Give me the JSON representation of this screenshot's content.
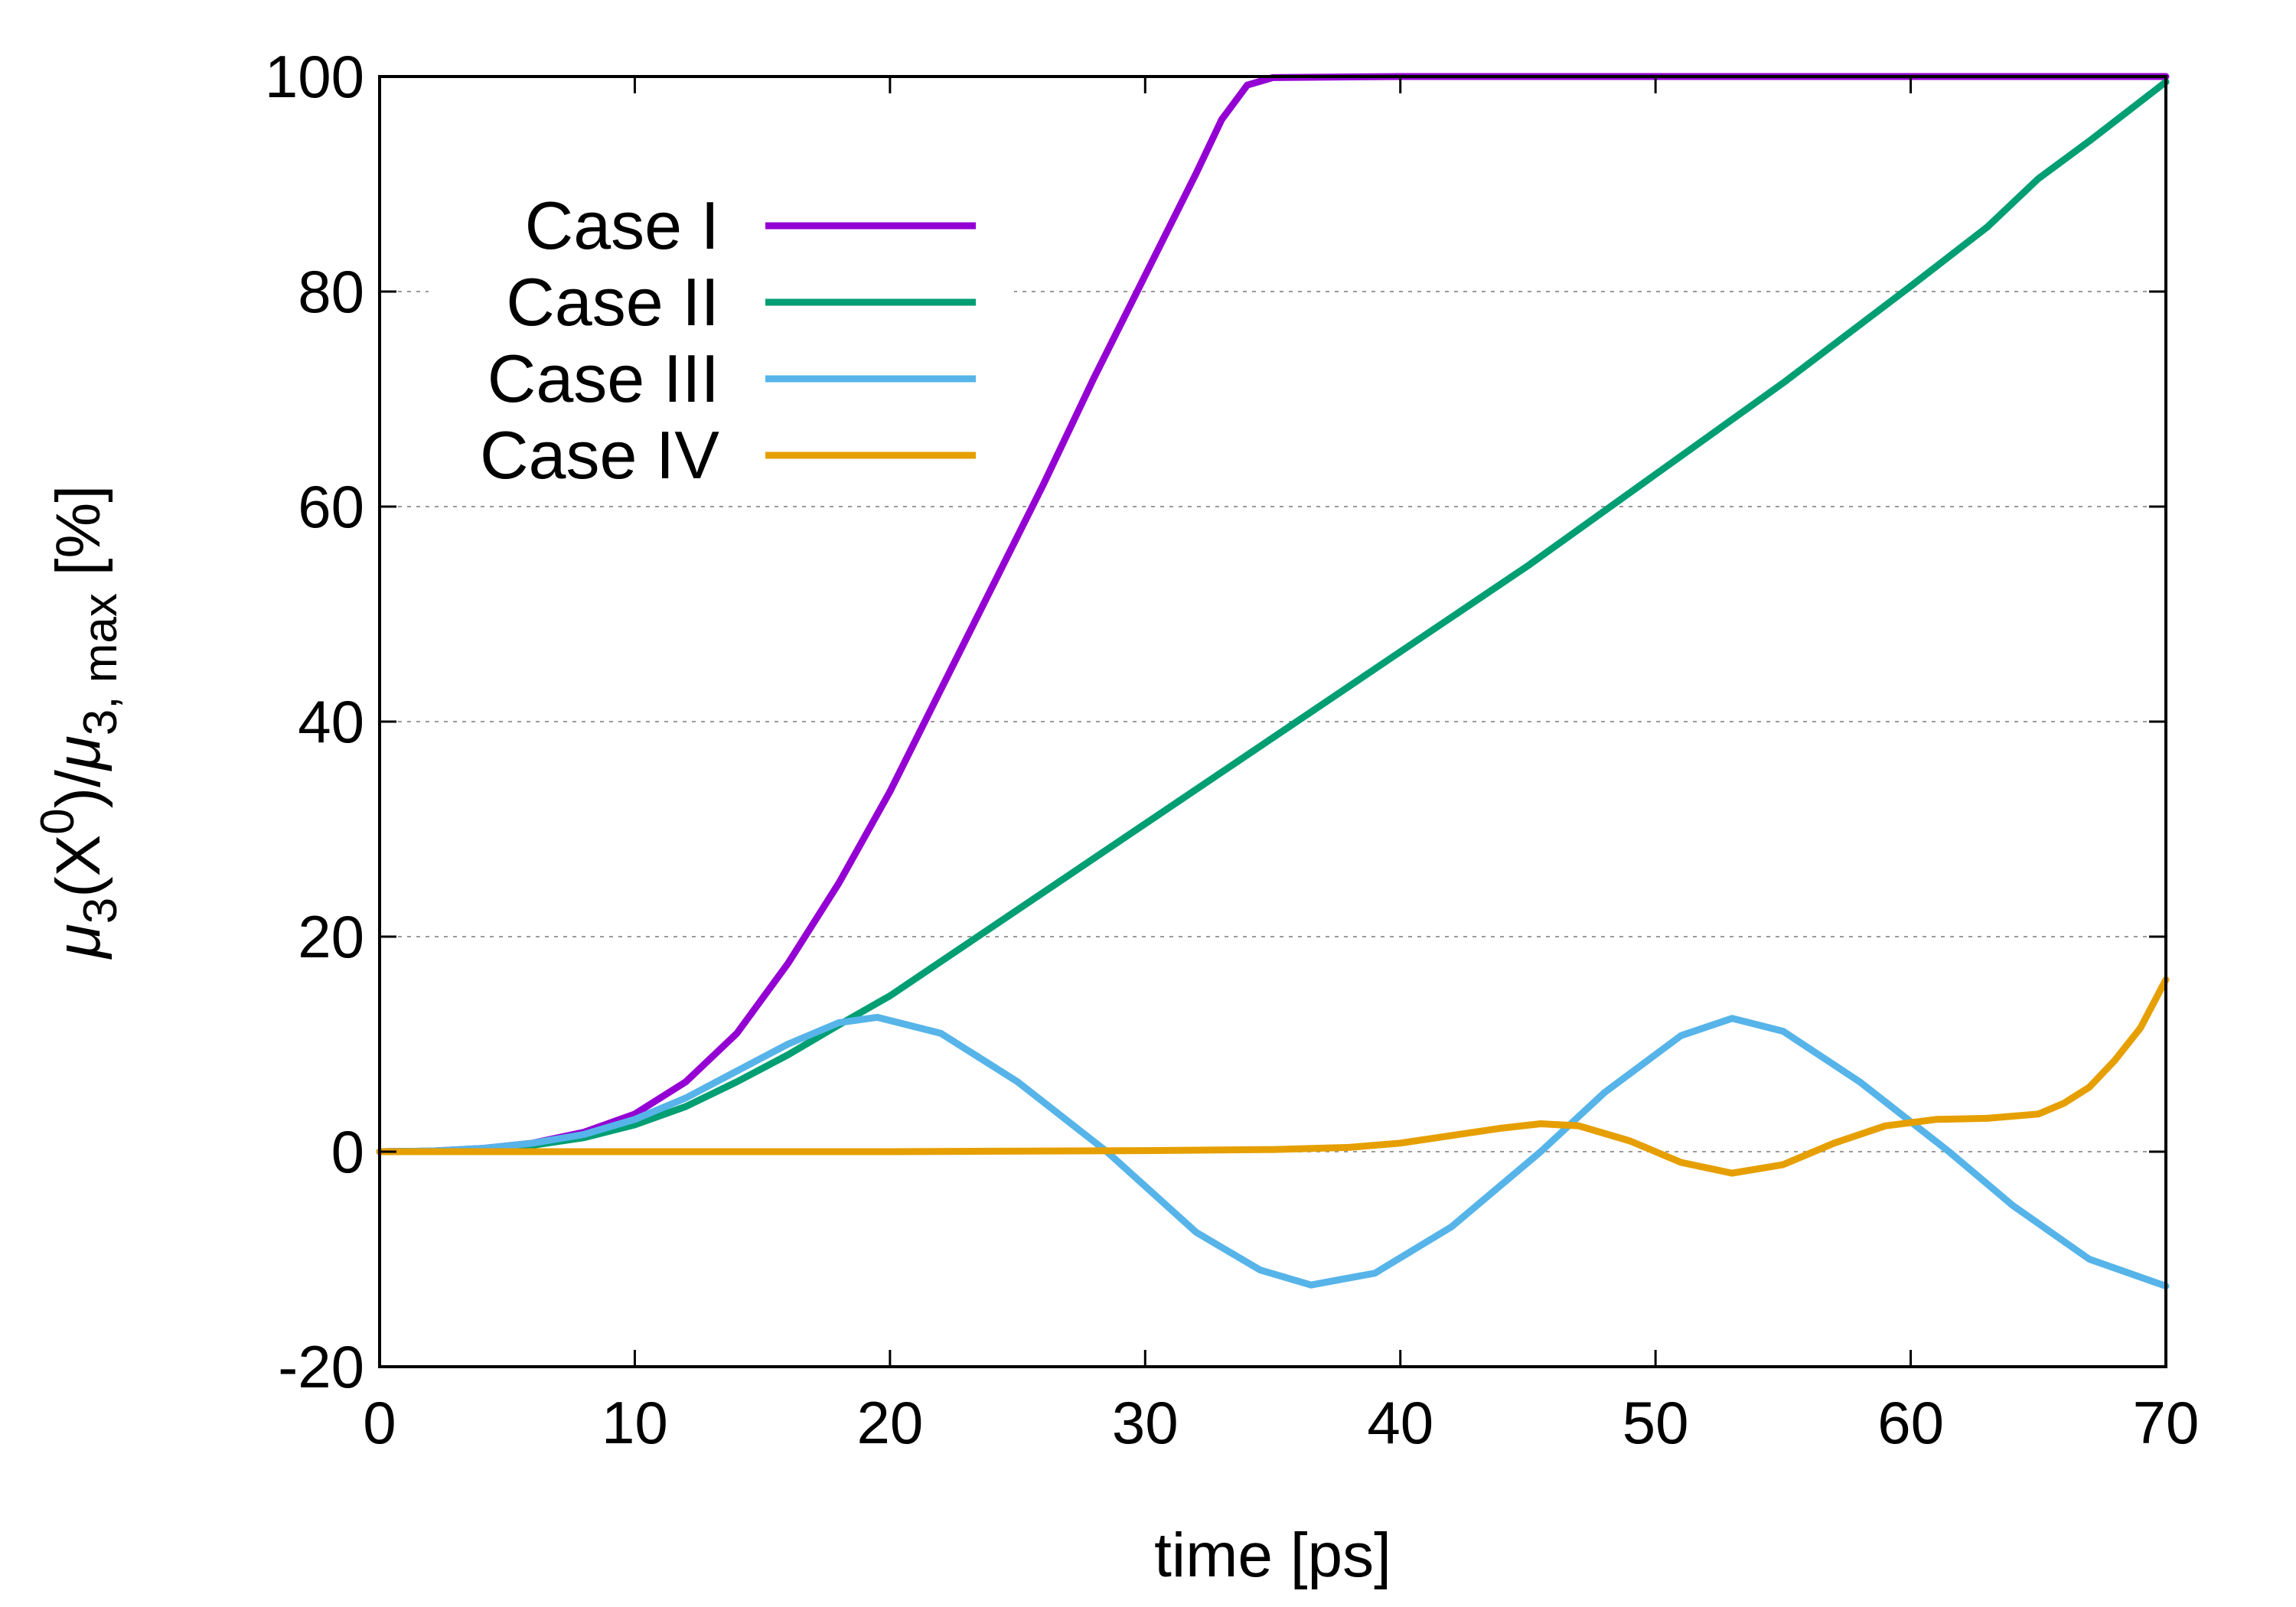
{
  "chart_data": {
    "type": "line",
    "xlabel": "time [ps]",
    "ylabel": "μ3(X0)/μ3, max [%]",
    "xlim": [
      0,
      70
    ],
    "ylim": [
      -20,
      100
    ],
    "xticks": [
      0,
      10,
      20,
      30,
      40,
      50,
      60,
      70
    ],
    "yticks": [
      -20,
      0,
      20,
      40,
      60,
      80,
      100
    ],
    "grid": "horizontal dashed",
    "legend_position": "top-left",
    "series": [
      {
        "name": "Case I",
        "color": "#9400d3",
        "x": [
          0,
          2,
          4,
          6,
          8,
          10,
          12,
          14,
          16,
          18,
          20,
          22,
          24,
          26,
          28,
          30,
          32,
          33,
          34,
          35,
          40,
          50,
          60,
          70
        ],
        "y": [
          0,
          0.05,
          0.3,
          0.8,
          1.8,
          3.5,
          6.5,
          11,
          17.5,
          25,
          33.5,
          43,
          52.5,
          62,
          72,
          81.5,
          91,
          96,
          99.2,
          99.9,
          100,
          100,
          100,
          100
        ]
      },
      {
        "name": "Case II",
        "color": "#009e73",
        "x": [
          0,
          2,
          4,
          6,
          8,
          10,
          12,
          14,
          16,
          18,
          20,
          25,
          30,
          35,
          40,
          45,
          50,
          55,
          60,
          63,
          65,
          67,
          70
        ],
        "y": [
          0,
          0.05,
          0.2,
          0.6,
          1.3,
          2.5,
          4.2,
          6.5,
          9,
          11.8,
          14.5,
          22.5,
          30.5,
          38.5,
          46.5,
          54.5,
          63,
          71.5,
          80.5,
          86,
          90.5,
          94,
          99.5
        ]
      },
      {
        "name": "Case III",
        "color": "#56b4e9",
        "x": [
          0,
          2,
          4,
          6,
          8,
          10,
          12,
          14,
          16,
          18,
          19.5,
          22,
          25,
          28.5,
          32,
          34.5,
          36.5,
          39,
          42,
          45.5,
          48,
          51,
          53,
          55,
          58,
          61.5,
          64,
          67,
          70
        ],
        "y": [
          0,
          0.05,
          0.3,
          0.8,
          1.6,
          3,
          5,
          7.5,
          10,
          12,
          12.5,
          11,
          6.5,
          0,
          -7.5,
          -11,
          -12.4,
          -11.3,
          -7,
          0,
          5.5,
          10.8,
          12.4,
          11.2,
          6.5,
          0,
          -5,
          -10,
          -12.5
        ]
      },
      {
        "name": "Case IV",
        "color": "#e69f00",
        "x": [
          0,
          10,
          20,
          30,
          35,
          38,
          40,
          42,
          44,
          45.5,
          47,
          49,
          51,
          53,
          55,
          57,
          59,
          61,
          63,
          65,
          66,
          67,
          68,
          69,
          70
        ],
        "y": [
          0,
          0,
          0,
          0.1,
          0.2,
          0.4,
          0.8,
          1.5,
          2.2,
          2.6,
          2.4,
          1,
          -1,
          -2,
          -1.2,
          0.8,
          2.4,
          3,
          3.1,
          3.5,
          4.5,
          6,
          8.5,
          11.5,
          16
        ]
      }
    ]
  }
}
